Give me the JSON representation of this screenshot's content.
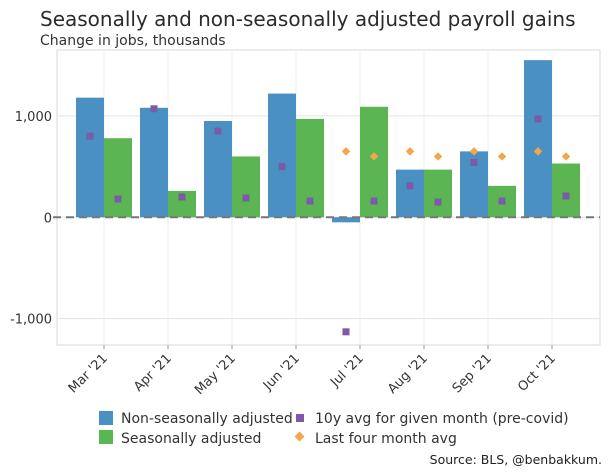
{
  "chart_data": {
    "type": "bar",
    "title": "Seasonally and non-seasonally adjusted payroll gains",
    "subtitle": "Change in jobs, thousands",
    "source": "Source: BLS, @benbakkum.",
    "categories": [
      "Mar '21",
      "Apr '21",
      "May '21",
      "Jun '21",
      "Jul '21",
      "Aug '21",
      "Sep '21",
      "Oct '21"
    ],
    "series": [
      {
        "name": "Non-seasonally adjusted",
        "kind": "bar",
        "color": "#4a90c2",
        "values": [
          1180,
          1080,
          950,
          1220,
          -50,
          470,
          650,
          1550
        ]
      },
      {
        "name": "Seasonally adjusted",
        "kind": "bar",
        "color": "#5ab552",
        "values": [
          780,
          260,
          600,
          970,
          1090,
          470,
          310,
          530
        ]
      },
      {
        "name": "10y avg for given month (pre-covid)",
        "kind": "square",
        "color": "#7b5aa6",
        "a": [
          800,
          1070,
          850,
          500,
          -1130,
          310,
          540,
          970
        ],
        "b": [
          180,
          200,
          190,
          160,
          160,
          150,
          160,
          210
        ]
      },
      {
        "name": "Last four month avg",
        "kind": "diamond",
        "color": "#f5a54a",
        "values": [
          null,
          null,
          null,
          null,
          650,
          650,
          650,
          650
        ],
        "shift": [
          null,
          null,
          null,
          null,
          600,
          600,
          600,
          600
        ]
      }
    ],
    "yticks": [
      -1000,
      0,
      1000
    ],
    "ytick_labels": [
      "-1,000",
      "0",
      "1,000"
    ],
    "ylim": [
      -1260,
      1650
    ],
    "grid": true,
    "zero_line": "dashed",
    "legend_position": "bottom"
  }
}
